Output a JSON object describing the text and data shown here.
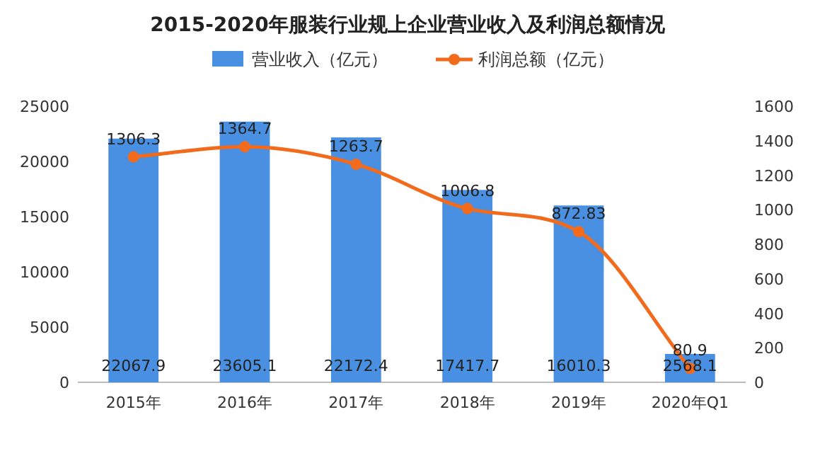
{
  "chart_data": {
    "type": "bar",
    "title": "2015-2020年服装行业规上企业营业收入及利润总额情况",
    "categories": [
      "2015年",
      "2016年",
      "2017年",
      "2018年",
      "2019年",
      "2020年Q1"
    ],
    "series": [
      {
        "name": "营业收入（亿元）",
        "color": "#4a90e2",
        "values": [
          22067.9,
          23605.1,
          22172.4,
          17417.7,
          16010.3,
          2568.1
        ]
      },
      {
        "name": "利润总额（亿元）",
        "type": "line",
        "axis": "y2",
        "color": "#f26b1d",
        "values": [
          1306.3,
          1364.7,
          1263.7,
          1006.8,
          872.83,
          80.9
        ]
      }
    ],
    "ylim": [
      0,
      25000
    ],
    "yticks": [
      0,
      5000,
      10000,
      15000,
      20000,
      25000
    ],
    "y2lim": [
      0,
      1600
    ],
    "y2ticks": [
      0,
      200,
      400,
      600,
      800,
      1000,
      1200,
      1400,
      1600
    ],
    "legend": "top",
    "marker": "circle",
    "data_labels": true
  }
}
